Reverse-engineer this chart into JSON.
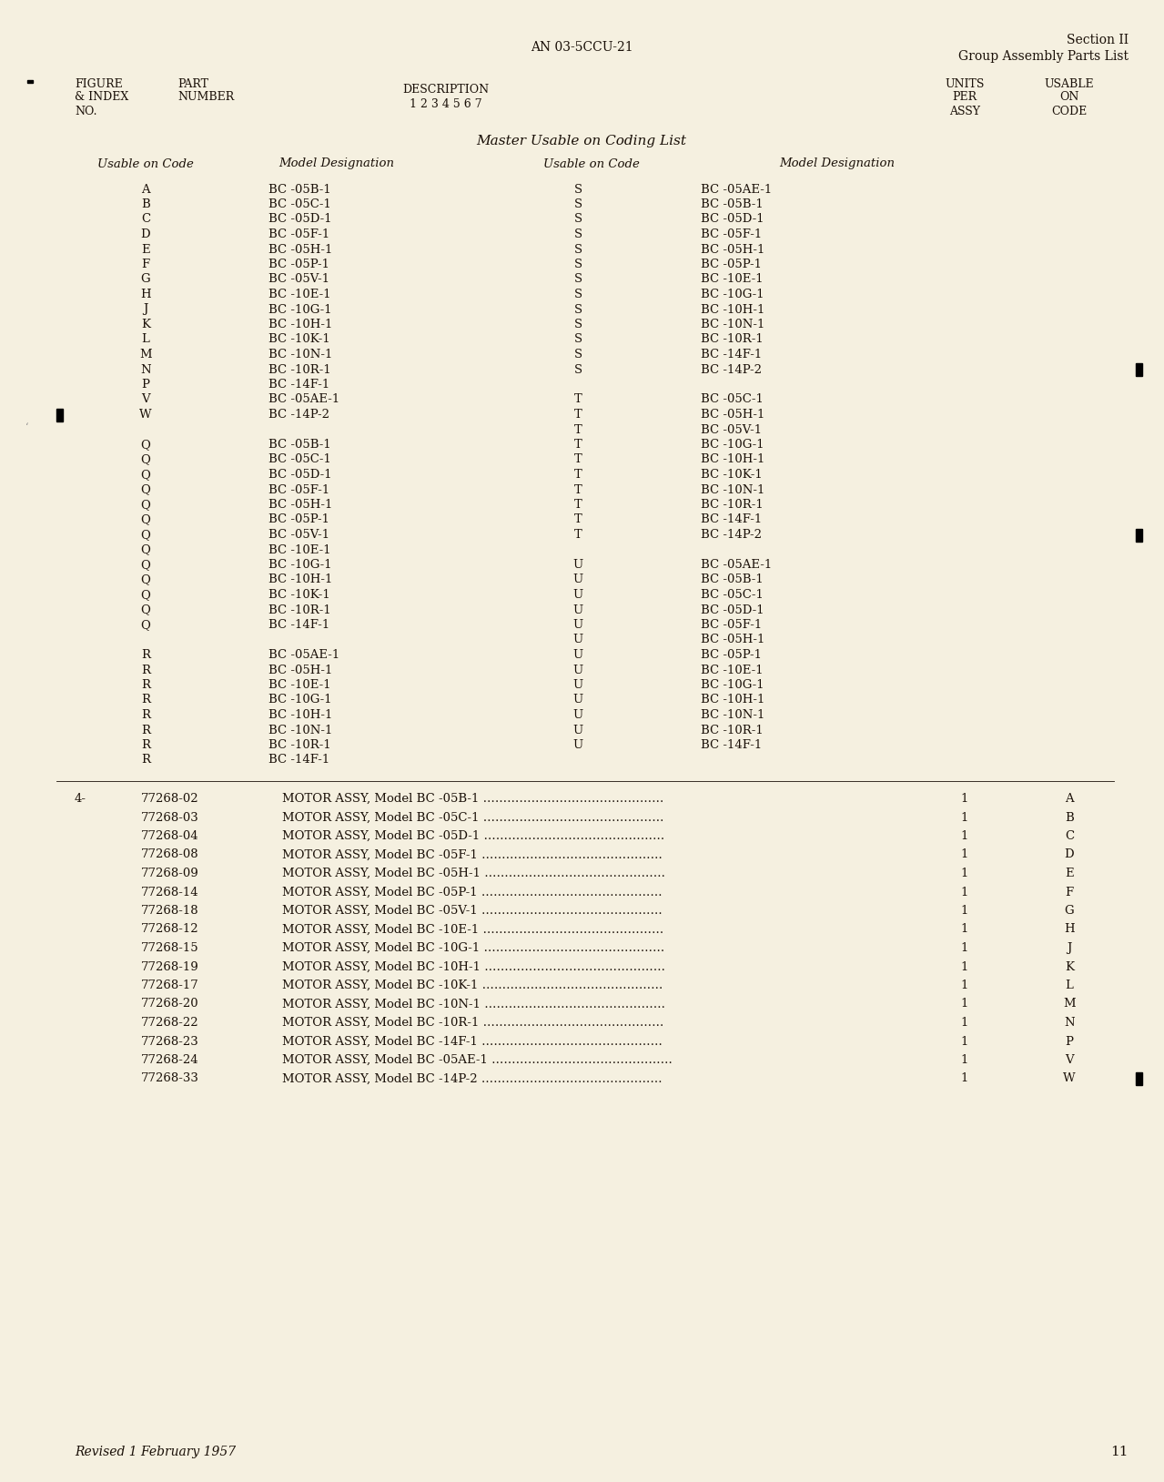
{
  "bg_color": "#f5f0e0",
  "text_color": "#1a1008",
  "page_number": "11",
  "doc_number": "AN 03-5CCU-21",
  "section_title": "Section II",
  "section_subtitle": "Group Assembly Parts List",
  "master_title": "Master Usable on Coding List",
  "coding_data_left": [
    [
      "A",
      "BC -05B-1"
    ],
    [
      "B",
      "BC -05C-1"
    ],
    [
      "C",
      "BC -05D-1"
    ],
    [
      "D",
      "BC -05F-1"
    ],
    [
      "E",
      "BC -05H-1"
    ],
    [
      "F",
      "BC -05P-1"
    ],
    [
      "G",
      "BC -05V-1"
    ],
    [
      "H",
      "BC -10E-1"
    ],
    [
      "J",
      "BC -10G-1"
    ],
    [
      "K",
      "BC -10H-1"
    ],
    [
      "L",
      "BC -10K-1"
    ],
    [
      "M",
      "BC -10N-1"
    ],
    [
      "N",
      "BC -10R-1"
    ],
    [
      "P",
      "BC -14F-1"
    ],
    [
      "V",
      "BC -05AE-1"
    ],
    [
      "W",
      "BC -14P-2"
    ],
    [
      "",
      ""
    ],
    [
      "Q",
      "BC -05B-1"
    ],
    [
      "Q",
      "BC -05C-1"
    ],
    [
      "Q",
      "BC -05D-1"
    ],
    [
      "Q",
      "BC -05F-1"
    ],
    [
      "Q",
      "BC -05H-1"
    ],
    [
      "Q",
      "BC -05P-1"
    ],
    [
      "Q",
      "BC -05V-1"
    ],
    [
      "Q",
      "BC -10E-1"
    ],
    [
      "Q",
      "BC -10G-1"
    ],
    [
      "Q",
      "BC -10H-1"
    ],
    [
      "Q",
      "BC -10K-1"
    ],
    [
      "Q",
      "BC -10R-1"
    ],
    [
      "Q",
      "BC -14F-1"
    ],
    [
      "",
      ""
    ],
    [
      "R",
      "BC -05AE-1"
    ],
    [
      "R",
      "BC -05H-1"
    ],
    [
      "R",
      "BC -10E-1"
    ],
    [
      "R",
      "BC -10G-1"
    ],
    [
      "R",
      "BC -10H-1"
    ],
    [
      "R",
      "BC -10N-1"
    ],
    [
      "R",
      "BC -10R-1"
    ],
    [
      "R",
      "BC -14F-1"
    ]
  ],
  "coding_data_right": [
    [
      "S",
      "BC -05AE-1"
    ],
    [
      "S",
      "BC -05B-1"
    ],
    [
      "S",
      "BC -05D-1"
    ],
    [
      "S",
      "BC -05F-1"
    ],
    [
      "S",
      "BC -05H-1"
    ],
    [
      "S",
      "BC -05P-1"
    ],
    [
      "S",
      "BC -10E-1"
    ],
    [
      "S",
      "BC -10G-1"
    ],
    [
      "S",
      "BC -10H-1"
    ],
    [
      "S",
      "BC -10N-1"
    ],
    [
      "S",
      "BC -10R-1"
    ],
    [
      "S",
      "BC -14F-1"
    ],
    [
      "S",
      "BC -14P-2"
    ],
    [
      "",
      ""
    ],
    [
      "T",
      "BC -05C-1"
    ],
    [
      "T",
      "BC -05H-1"
    ],
    [
      "T",
      "BC -05V-1"
    ],
    [
      "T",
      "BC -10G-1"
    ],
    [
      "T",
      "BC -10H-1"
    ],
    [
      "T",
      "BC -10K-1"
    ],
    [
      "T",
      "BC -10N-1"
    ],
    [
      "T",
      "BC -10R-1"
    ],
    [
      "T",
      "BC -14F-1"
    ],
    [
      "T",
      "BC -14P-2"
    ],
    [
      "",
      ""
    ],
    [
      "U",
      "BC -05AE-1"
    ],
    [
      "U",
      "BC -05B-1"
    ],
    [
      "U",
      "BC -05C-1"
    ],
    [
      "U",
      "BC -05D-1"
    ],
    [
      "U",
      "BC -05F-1"
    ],
    [
      "U",
      "BC -05H-1"
    ],
    [
      "U",
      "BC -05P-1"
    ],
    [
      "U",
      "BC -10E-1"
    ],
    [
      "U",
      "BC -10G-1"
    ],
    [
      "U",
      "BC -10H-1"
    ],
    [
      "U",
      "BC -10N-1"
    ],
    [
      "U",
      "BC -10R-1"
    ],
    [
      "U",
      "BC -14F-1"
    ]
  ],
  "parts_data": [
    [
      "4-",
      "77268-02",
      "MOTOR ASSY, Model BC -05B-1",
      "1",
      "A"
    ],
    [
      "",
      "77268-03",
      "MOTOR ASSY, Model BC -05C-1",
      "1",
      "B"
    ],
    [
      "",
      "77268-04",
      "MOTOR ASSY, Model BC -05D-1",
      "1",
      "C"
    ],
    [
      "",
      "77268-08",
      "MOTOR ASSY, Model BC -05F-1",
      "1",
      "D"
    ],
    [
      "",
      "77268-09",
      "MOTOR ASSY, Model BC -05H-1",
      "1",
      "E"
    ],
    [
      "",
      "77268-14",
      "MOTOR ASSY, Model BC -05P-1",
      "1",
      "F"
    ],
    [
      "",
      "77268-18",
      "MOTOR ASSY, Model BC -05V-1",
      "1",
      "G"
    ],
    [
      "",
      "77268-12",
      "MOTOR ASSY, Model BC -10E-1",
      "1",
      "H"
    ],
    [
      "",
      "77268-15",
      "MOTOR ASSY, Model BC -10G-1",
      "1",
      "J"
    ],
    [
      "",
      "77268-19",
      "MOTOR ASSY, Model BC -10H-1",
      "1",
      "K"
    ],
    [
      "",
      "77268-17",
      "MOTOR ASSY, Model BC -10K-1",
      "1",
      "L"
    ],
    [
      "",
      "77268-20",
      "MOTOR ASSY, Model BC -10N-1",
      "1",
      "M"
    ],
    [
      "",
      "77268-22",
      "MOTOR ASSY, Model BC -10R-1",
      "1",
      "N"
    ],
    [
      "",
      "77268-23",
      "MOTOR ASSY, Model BC -14F-1",
      "1",
      "P"
    ],
    [
      "",
      "77268-24",
      "MOTOR ASSY, Model BC -05AE-1",
      "1",
      "V"
    ],
    [
      "",
      "77268-33",
      "MOTOR ASSY, Model BC -14P-2",
      "1",
      "W"
    ]
  ],
  "footer_text": "Revised 1 February 1957",
  "dots_str": " ………………………………………"
}
